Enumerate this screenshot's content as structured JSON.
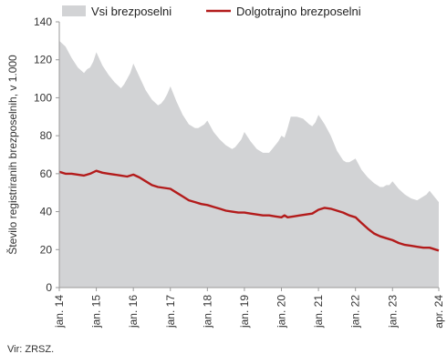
{
  "chart_data": {
    "type": "area",
    "ylabel": "Število registriranih brezposelnih, v 1.000",
    "ylim": [
      0,
      140
    ],
    "yticks": [
      0,
      20,
      40,
      60,
      80,
      100,
      120,
      140
    ],
    "xlim": [
      "2014-01",
      "2024-04"
    ],
    "xtick_labels": [
      "jan. 14",
      "jan. 15",
      "jan. 16",
      "jan. 17",
      "jan. 18",
      "jan. 19",
      "jan. 20",
      "jan. 21",
      "jan. 22",
      "jan. 23",
      "apr. 24"
    ],
    "xtick_dates": [
      "2014-01",
      "2015-01",
      "2016-01",
      "2017-01",
      "2018-01",
      "2019-01",
      "2020-01",
      "2021-01",
      "2022-01",
      "2023-01",
      "2024-04"
    ],
    "grid": false,
    "legend_position": "top",
    "series": [
      {
        "name": "Vsi brezposelni",
        "style": "area",
        "color": "#d2d3d5",
        "points": [
          [
            "2014-01",
            130
          ],
          [
            "2014-03",
            127
          ],
          [
            "2014-05",
            121
          ],
          [
            "2014-07",
            116
          ],
          [
            "2014-09",
            113
          ],
          [
            "2014-10",
            115
          ],
          [
            "2014-11",
            116
          ],
          [
            "2014-12",
            119
          ],
          [
            "2015-01",
            124
          ],
          [
            "2015-03",
            117
          ],
          [
            "2015-05",
            112
          ],
          [
            "2015-07",
            108
          ],
          [
            "2015-09",
            105
          ],
          [
            "2015-10",
            107
          ],
          [
            "2015-11",
            110
          ],
          [
            "2015-12",
            113
          ],
          [
            "2016-01",
            118
          ],
          [
            "2016-03",
            111
          ],
          [
            "2016-05",
            104
          ],
          [
            "2016-07",
            99
          ],
          [
            "2016-09",
            96
          ],
          [
            "2016-10",
            97
          ],
          [
            "2016-11",
            99
          ],
          [
            "2016-12",
            102
          ],
          [
            "2017-01",
            106
          ],
          [
            "2017-03",
            98
          ],
          [
            "2017-05",
            91
          ],
          [
            "2017-07",
            86
          ],
          [
            "2017-09",
            84
          ],
          [
            "2017-10",
            84
          ],
          [
            "2017-11",
            85
          ],
          [
            "2017-12",
            86
          ],
          [
            "2018-01",
            88
          ],
          [
            "2018-03",
            82
          ],
          [
            "2018-05",
            78
          ],
          [
            "2018-07",
            75
          ],
          [
            "2018-09",
            73
          ],
          [
            "2018-10",
            74
          ],
          [
            "2018-11",
            76
          ],
          [
            "2018-12",
            78
          ],
          [
            "2019-01",
            82
          ],
          [
            "2019-03",
            77
          ],
          [
            "2019-05",
            73
          ],
          [
            "2019-07",
            71
          ],
          [
            "2019-09",
            71
          ],
          [
            "2019-10",
            73
          ],
          [
            "2019-11",
            75
          ],
          [
            "2019-12",
            77
          ],
          [
            "2020-01",
            80
          ],
          [
            "2020-02",
            79
          ],
          [
            "2020-03",
            84
          ],
          [
            "2020-04",
            90
          ],
          [
            "2020-06",
            90
          ],
          [
            "2020-08",
            89
          ],
          [
            "2020-10",
            86
          ],
          [
            "2020-11",
            85
          ],
          [
            "2020-12",
            87
          ],
          [
            "2021-01",
            91
          ],
          [
            "2021-03",
            86
          ],
          [
            "2021-05",
            80
          ],
          [
            "2021-07",
            72
          ],
          [
            "2021-09",
            67
          ],
          [
            "2021-10",
            66
          ],
          [
            "2021-11",
            66
          ],
          [
            "2021-12",
            67
          ],
          [
            "2022-01",
            68
          ],
          [
            "2022-03",
            62
          ],
          [
            "2022-05",
            58
          ],
          [
            "2022-07",
            55
          ],
          [
            "2022-09",
            53
          ],
          [
            "2022-10",
            53
          ],
          [
            "2022-11",
            54
          ],
          [
            "2022-12",
            54
          ],
          [
            "2023-01",
            56
          ],
          [
            "2023-03",
            52
          ],
          [
            "2023-05",
            49
          ],
          [
            "2023-07",
            47
          ],
          [
            "2023-09",
            46
          ],
          [
            "2023-10",
            47
          ],
          [
            "2023-11",
            48
          ],
          [
            "2023-12",
            49
          ],
          [
            "2024-01",
            51
          ],
          [
            "2024-02",
            49
          ],
          [
            "2024-03",
            47
          ],
          [
            "2024-04",
            45
          ]
        ]
      },
      {
        "name": "Dolgotrajno brezposelni",
        "style": "line",
        "color": "#b31b1b",
        "points": [
          [
            "2014-01",
            61
          ],
          [
            "2014-03",
            60
          ],
          [
            "2014-05",
            60
          ],
          [
            "2014-07",
            59.5
          ],
          [
            "2014-09",
            59
          ],
          [
            "2014-11",
            60
          ],
          [
            "2015-01",
            61.5
          ],
          [
            "2015-03",
            60.5
          ],
          [
            "2015-05",
            60
          ],
          [
            "2015-07",
            59.5
          ],
          [
            "2015-09",
            59
          ],
          [
            "2015-11",
            58.5
          ],
          [
            "2016-01",
            59.5
          ],
          [
            "2016-03",
            58
          ],
          [
            "2016-05",
            56
          ],
          [
            "2016-07",
            54
          ],
          [
            "2016-09",
            53
          ],
          [
            "2016-11",
            52.5
          ],
          [
            "2017-01",
            52
          ],
          [
            "2017-03",
            50
          ],
          [
            "2017-05",
            48
          ],
          [
            "2017-07",
            46
          ],
          [
            "2017-09",
            45
          ],
          [
            "2017-11",
            44
          ],
          [
            "2018-01",
            43.5
          ],
          [
            "2018-03",
            42.5
          ],
          [
            "2018-05",
            41.5
          ],
          [
            "2018-07",
            40.5
          ],
          [
            "2018-09",
            40
          ],
          [
            "2018-11",
            39.5
          ],
          [
            "2019-01",
            39.5
          ],
          [
            "2019-03",
            39
          ],
          [
            "2019-05",
            38.5
          ],
          [
            "2019-07",
            38
          ],
          [
            "2019-09",
            38
          ],
          [
            "2019-11",
            37.5
          ],
          [
            "2020-01",
            37
          ],
          [
            "2020-02",
            38
          ],
          [
            "2020-03",
            37
          ],
          [
            "2020-05",
            37.5
          ],
          [
            "2020-07",
            38
          ],
          [
            "2020-09",
            38.5
          ],
          [
            "2020-11",
            39
          ],
          [
            "2021-01",
            41
          ],
          [
            "2021-03",
            42
          ],
          [
            "2021-05",
            41.5
          ],
          [
            "2021-07",
            40.5
          ],
          [
            "2021-09",
            39.5
          ],
          [
            "2021-11",
            38
          ],
          [
            "2022-01",
            37
          ],
          [
            "2022-03",
            34
          ],
          [
            "2022-05",
            31
          ],
          [
            "2022-07",
            28.5
          ],
          [
            "2022-09",
            27
          ],
          [
            "2022-11",
            26
          ],
          [
            "2023-01",
            25
          ],
          [
            "2023-03",
            23.5
          ],
          [
            "2023-05",
            22.5
          ],
          [
            "2023-07",
            22
          ],
          [
            "2023-09",
            21.5
          ],
          [
            "2023-11",
            21
          ],
          [
            "2024-01",
            21
          ],
          [
            "2024-02",
            20.5
          ],
          [
            "2024-03",
            20
          ],
          [
            "2024-04",
            19.5
          ]
        ]
      }
    ]
  },
  "source_note": "Vir: ZRSZ."
}
